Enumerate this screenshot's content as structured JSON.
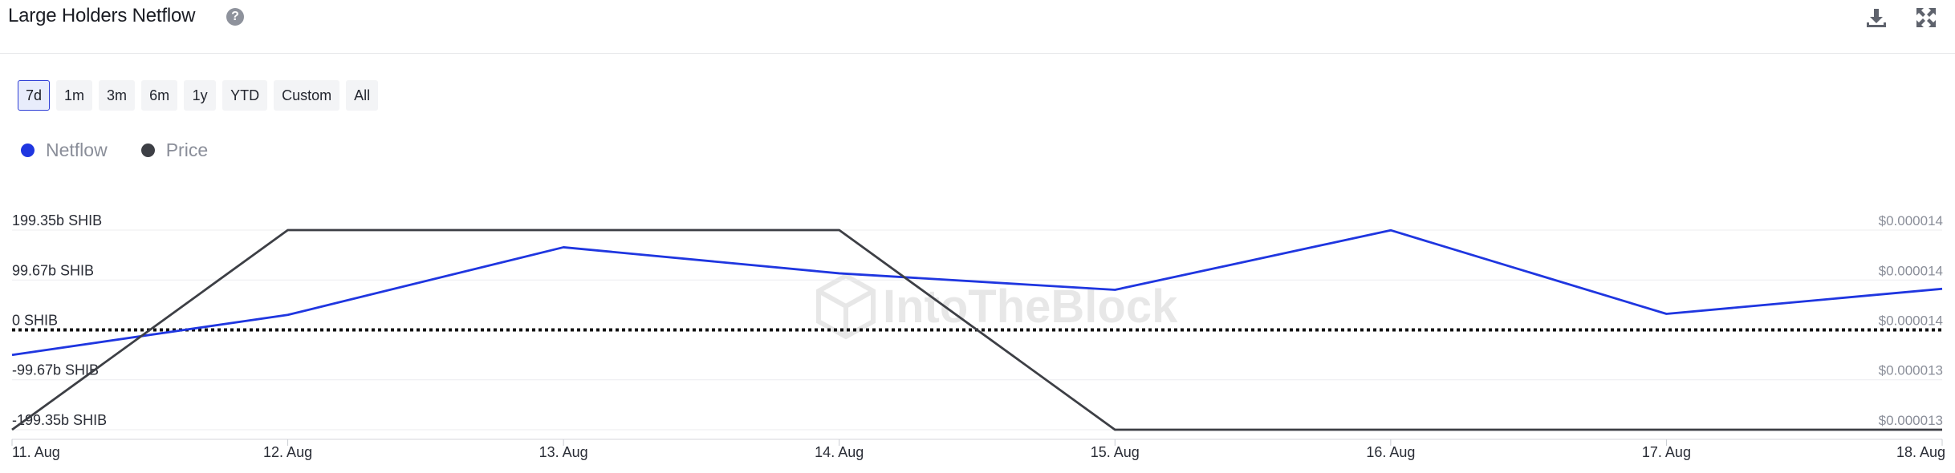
{
  "header": {
    "title": "Large Holders Netflow"
  },
  "icons": {
    "help": "question-circle-icon",
    "download": "download-icon",
    "fullscreen": "fullscreen-icon"
  },
  "ranges": [
    "7d",
    "1m",
    "3m",
    "6m",
    "1y",
    "YTD",
    "Custom",
    "All"
  ],
  "active_range": "7d",
  "legend": [
    {
      "name": "Netflow",
      "color": "#1f36e0"
    },
    {
      "name": "Price",
      "color": "#3d3f45"
    }
  ],
  "watermark": "IntoTheBlock",
  "chart_data": {
    "type": "line",
    "x": [
      "11. Aug",
      "12. Aug",
      "13. Aug",
      "14. Aug",
      "15. Aug",
      "16. Aug",
      "17. Aug",
      "18. Aug"
    ],
    "series": [
      {
        "name": "Netflow",
        "axis": "left",
        "color": "#1f36e0",
        "values": [
          -50,
          30,
          165,
          113,
          80,
          199,
          32,
          82
        ]
      },
      {
        "name": "Price",
        "axis": "right",
        "color": "#3d3f45",
        "values": [
          1.282e-05,
          1.434e-05,
          1.434e-05,
          1.434e-05,
          1.282e-05,
          1.282e-05,
          1.282e-05,
          1.282e-05
        ]
      }
    ],
    "y_left": {
      "ticks": [
        -199.35,
        -99.67,
        0,
        99.67,
        199.35
      ],
      "tick_labels": [
        "-199.35b SHIB",
        "-99.67b SHIB",
        "0 SHIB",
        "99.67b SHIB",
        "199.35b SHIB"
      ],
      "ylim": [
        -199.35,
        199.35
      ]
    },
    "y_right": {
      "tick_labels": [
        "$0.000013",
        "$0.000013",
        "$0.000014",
        "$0.000014",
        "$0.000014"
      ],
      "ylim": [
        1.282e-05,
        1.434e-05
      ]
    },
    "zero_line": "dotted",
    "grid": true
  }
}
